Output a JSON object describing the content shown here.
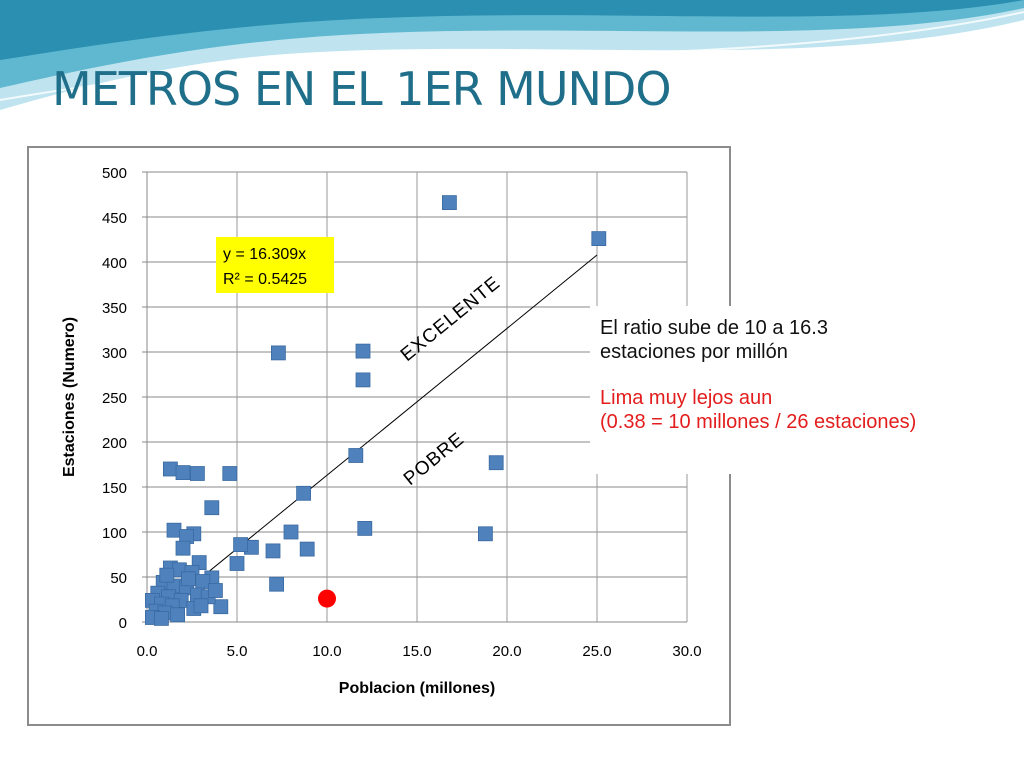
{
  "slide": {
    "title": "METROS EN EL 1ER MUNDO",
    "title_color": "#1f6f8b"
  },
  "chart_data": {
    "type": "scatter",
    "title": "",
    "xlabel": "Poblacion (millones)",
    "ylabel": "Estaciones (Numero)",
    "xlim": [
      0,
      30
    ],
    "ylim": [
      0,
      500
    ],
    "x_ticks": [
      "0.0",
      "5.0",
      "10.0",
      "15.0",
      "20.0",
      "25.0",
      "30.0"
    ],
    "y_ticks": [
      "0",
      "50",
      "100",
      "150",
      "200",
      "250",
      "300",
      "350",
      "400",
      "450",
      "500"
    ],
    "grid": "horizontal",
    "marker_color": "#4f81bd",
    "trendline": {
      "slope": 16.309,
      "x_range": [
        0,
        25
      ]
    },
    "equation": {
      "line1": "y = 16.309x",
      "line2": "R² = 0.5425",
      "background": "#ffff00"
    },
    "region_labels": {
      "above": "EXCELENTE",
      "below": "POBRE"
    },
    "highlight_point": {
      "x": 10.0,
      "y": 26,
      "color": "#ff0000"
    },
    "series": [
      {
        "points": [
          [
            16.8,
            466
          ],
          [
            25.1,
            426
          ],
          [
            7.3,
            299
          ],
          [
            12.0,
            301
          ],
          [
            12.0,
            269
          ],
          [
            11.6,
            185
          ],
          [
            19.4,
            177
          ],
          [
            1.3,
            170
          ],
          [
            2.0,
            166
          ],
          [
            2.8,
            165
          ],
          [
            4.6,
            165
          ],
          [
            8.7,
            143
          ],
          [
            3.6,
            127
          ],
          [
            12.1,
            104
          ],
          [
            18.8,
            98
          ],
          [
            8.0,
            100
          ],
          [
            1.5,
            102
          ],
          [
            2.6,
            98
          ],
          [
            2.2,
            95
          ],
          [
            8.9,
            81
          ],
          [
            5.8,
            83
          ],
          [
            5.2,
            86
          ],
          [
            7.0,
            79
          ],
          [
            2.0,
            82
          ],
          [
            2.9,
            66
          ],
          [
            5.0,
            65
          ],
          [
            7.2,
            42
          ],
          [
            3.6,
            49
          ],
          [
            4.1,
            17
          ],
          [
            1.3,
            60
          ],
          [
            1.8,
            58
          ],
          [
            2.5,
            55
          ],
          [
            3.1,
            45
          ],
          [
            0.9,
            44
          ],
          [
            1.5,
            40
          ],
          [
            2.2,
            38
          ],
          [
            2.8,
            30
          ],
          [
            3.4,
            28
          ],
          [
            0.6,
            32
          ],
          [
            1.2,
            28
          ],
          [
            1.9,
            24
          ],
          [
            0.3,
            24
          ],
          [
            0.8,
            20
          ],
          [
            1.4,
            18
          ],
          [
            2.6,
            15
          ],
          [
            0.5,
            12
          ],
          [
            1.0,
            10
          ],
          [
            1.7,
            8
          ],
          [
            0.3,
            5
          ],
          [
            0.8,
            4
          ],
          [
            3.0,
            18
          ],
          [
            3.8,
            35
          ],
          [
            2.3,
            48
          ],
          [
            1.1,
            52
          ]
        ]
      }
    ]
  },
  "note": {
    "line1": "El ratio sube de 10 a 16.3",
    "line2": "estaciones por millón",
    "line3": "Lima muy lejos aun",
    "line4": "(0.38 = 10 millones / 26 estaciones)"
  }
}
